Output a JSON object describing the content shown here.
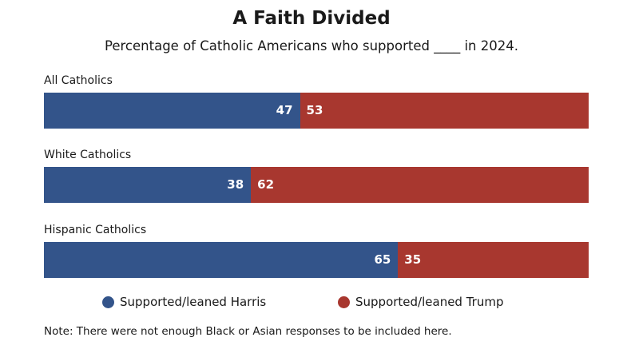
{
  "chart_data": {
    "type": "bar",
    "stacked": true,
    "orientation": "horizontal",
    "title": "A Faith Divided",
    "subtitle": "Percentage of Catholic Americans who supported ____ in 2024.",
    "categories": [
      "All Catholics",
      "White Catholics",
      "Hispanic Catholics"
    ],
    "series": [
      {
        "name": "Supported/leaned Harris",
        "values": [
          47,
          38,
          65
        ],
        "color": "#33548a"
      },
      {
        "name": "Supported/leaned Trump",
        "values": [
          53,
          62,
          35
        ],
        "color": "#a8372f"
      }
    ],
    "xlim": [
      0,
      100
    ],
    "grid": false,
    "legend_position": "bottom",
    "note": "Note: There were not enough Black or Asian responses to be included here."
  }
}
